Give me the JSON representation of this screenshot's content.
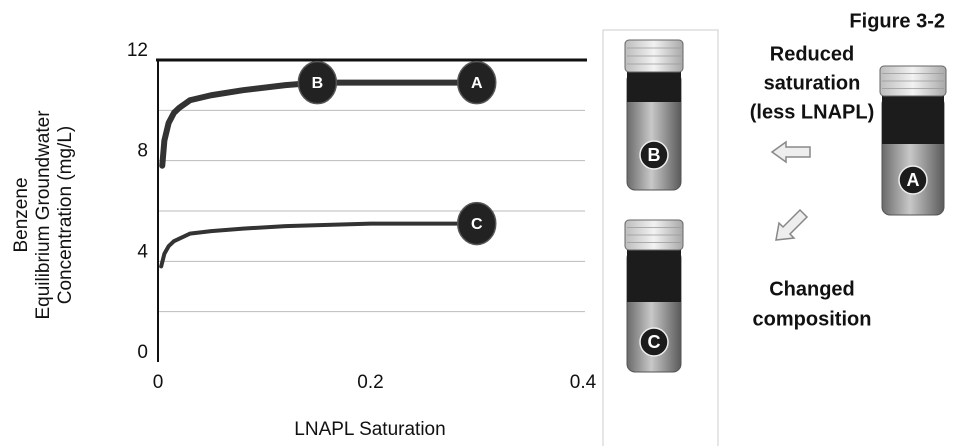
{
  "chart_data": {
    "type": "line",
    "y_label": [
      "Benzene",
      "Equilibrium Groundwater",
      "Concentration (mg/L)"
    ],
    "x_label": "LNAPL Saturation",
    "xlim": [
      0,
      0.4
    ],
    "xticks": [
      0,
      0.2,
      0.4
    ],
    "ylim": [
      0,
      12
    ],
    "yticks": [
      0,
      4,
      8,
      12
    ],
    "ygrid": [
      2,
      4,
      6,
      8,
      10
    ],
    "grid": true,
    "series": [
      {
        "color": "#333333",
        "x": [
          0.004,
          0.006,
          0.01,
          0.015,
          0.02,
          0.03,
          0.05,
          0.08,
          0.12,
          0.15,
          0.2,
          0.3
        ],
        "values": [
          7.8,
          8.8,
          9.5,
          9.9,
          10.1,
          10.4,
          10.6,
          10.8,
          11.0,
          11.1,
          11.1,
          11.1
        ]
      },
      {
        "color": "#333333",
        "x": [
          0.003,
          0.006,
          0.01,
          0.015,
          0.02,
          0.03,
          0.05,
          0.08,
          0.12,
          0.2,
          0.3
        ],
        "values": [
          3.8,
          4.3,
          4.6,
          4.8,
          4.9,
          5.1,
          5.2,
          5.3,
          5.4,
          5.5,
          5.5
        ]
      }
    ],
    "markers": [
      {
        "label": "B",
        "x": 0.15,
        "y": 11.1
      },
      {
        "label": "A",
        "x": 0.3,
        "y": 11.1
      },
      {
        "label": "C",
        "x": 0.3,
        "y": 5.5
      }
    ]
  },
  "diagram": {
    "figure_label": "Figure 3-2",
    "reduced_text": [
      "Reduced",
      "saturation",
      "(less LNAPL)"
    ],
    "changed_text": [
      "Changed",
      "composition"
    ],
    "vials": [
      {
        "label": "B"
      },
      {
        "label": "C"
      },
      {
        "label": "A"
      }
    ]
  }
}
